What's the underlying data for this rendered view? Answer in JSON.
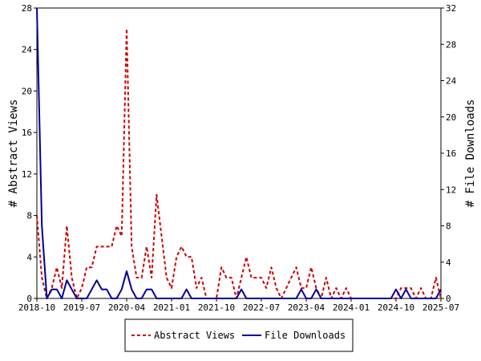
{
  "chart_data": {
    "type": "line",
    "x_ticks": [
      "2018-10",
      "2019-07",
      "2020-04",
      "2021-01",
      "2021-10",
      "2022-07",
      "2023-04",
      "2024-01",
      "2024-10",
      "2025-07"
    ],
    "x_range": [
      "2018-10",
      "2025-07"
    ],
    "ylabel_left": "# Abstract Views",
    "ylabel_right": "# File Downloads",
    "ylim_left": [
      0,
      28
    ],
    "ylim_right": [
      0,
      32
    ],
    "yticks_left": [
      0,
      4,
      8,
      12,
      16,
      20,
      24,
      28
    ],
    "yticks_right": [
      0,
      4,
      8,
      12,
      16,
      20,
      24,
      28,
      32
    ],
    "legend_position": "bottom-center",
    "series": [
      {
        "name": "Abstract Views",
        "axis": "left",
        "color": "#cc0000",
        "style": "dashed",
        "points": [
          [
            "2018-10",
            8
          ],
          [
            "2018-11",
            2
          ],
          [
            "2018-12",
            0
          ],
          [
            "2019-01",
            1
          ],
          [
            "2019-02",
            3
          ],
          [
            "2019-03",
            1
          ],
          [
            "2019-04",
            7
          ],
          [
            "2019-05",
            2
          ],
          [
            "2019-06",
            0
          ],
          [
            "2019-07",
            1
          ],
          [
            "2019-08",
            3
          ],
          [
            "2019-09",
            3
          ],
          [
            "2019-10",
            5
          ],
          [
            "2019-11",
            5
          ],
          [
            "2019-12",
            5
          ],
          [
            "2020-01",
            5
          ],
          [
            "2020-02",
            7
          ],
          [
            "2020-03",
            6
          ],
          [
            "2020-04",
            26
          ],
          [
            "2020-05",
            5
          ],
          [
            "2020-06",
            2
          ],
          [
            "2020-07",
            2
          ],
          [
            "2020-08",
            5
          ],
          [
            "2020-09",
            2
          ],
          [
            "2020-10",
            10
          ],
          [
            "2020-11",
            6
          ],
          [
            "2020-12",
            2
          ],
          [
            "2021-01",
            1
          ],
          [
            "2021-02",
            4
          ],
          [
            "2021-03",
            5
          ],
          [
            "2021-04",
            4
          ],
          [
            "2021-05",
            4
          ],
          [
            "2021-06",
            1
          ],
          [
            "2021-07",
            2
          ],
          [
            "2021-08",
            0
          ],
          [
            "2021-09",
            0
          ],
          [
            "2021-10",
            0
          ],
          [
            "2021-11",
            3
          ],
          [
            "2021-12",
            2
          ],
          [
            "2022-01",
            2
          ],
          [
            "2022-02",
            0
          ],
          [
            "2022-03",
            2
          ],
          [
            "2022-04",
            4
          ],
          [
            "2022-05",
            2
          ],
          [
            "2022-06",
            2
          ],
          [
            "2022-07",
            2
          ],
          [
            "2022-08",
            1
          ],
          [
            "2022-09",
            3
          ],
          [
            "2022-10",
            1
          ],
          [
            "2022-11",
            0
          ],
          [
            "2022-12",
            1
          ],
          [
            "2023-01",
            2
          ],
          [
            "2023-02",
            3
          ],
          [
            "2023-03",
            1
          ],
          [
            "2023-04",
            1
          ],
          [
            "2023-05",
            3
          ],
          [
            "2023-06",
            1
          ],
          [
            "2023-07",
            0
          ],
          [
            "2023-08",
            2
          ],
          [
            "2023-09",
            0
          ],
          [
            "2023-10",
            1
          ],
          [
            "2023-11",
            0
          ],
          [
            "2023-12",
            1
          ],
          [
            "2024-01",
            0
          ],
          [
            "2024-02",
            0
          ],
          [
            "2024-03",
            0
          ],
          [
            "2024-04",
            0
          ],
          [
            "2024-05",
            0
          ],
          [
            "2024-06",
            0
          ],
          [
            "2024-07",
            0
          ],
          [
            "2024-08",
            0
          ],
          [
            "2024-09",
            0
          ],
          [
            "2024-10",
            0
          ],
          [
            "2024-11",
            1
          ],
          [
            "2024-12",
            1
          ],
          [
            "2025-01",
            1
          ],
          [
            "2025-02",
            0
          ],
          [
            "2025-03",
            1
          ],
          [
            "2025-04",
            0
          ],
          [
            "2025-05",
            0
          ],
          [
            "2025-06",
            2
          ],
          [
            "2025-07",
            0
          ]
        ]
      },
      {
        "name": "File Downloads",
        "axis": "right",
        "color": "#000099",
        "style": "solid",
        "points": [
          [
            "2018-10",
            32
          ],
          [
            "2018-11",
            8
          ],
          [
            "2018-12",
            0
          ],
          [
            "2019-01",
            1
          ],
          [
            "2019-02",
            1
          ],
          [
            "2019-03",
            0
          ],
          [
            "2019-04",
            2
          ],
          [
            "2019-05",
            1
          ],
          [
            "2019-06",
            0
          ],
          [
            "2019-07",
            0
          ],
          [
            "2019-08",
            0
          ],
          [
            "2019-09",
            1
          ],
          [
            "2019-10",
            2
          ],
          [
            "2019-11",
            1
          ],
          [
            "2019-12",
            1
          ],
          [
            "2020-01",
            0
          ],
          [
            "2020-02",
            0
          ],
          [
            "2020-03",
            1
          ],
          [
            "2020-04",
            3
          ],
          [
            "2020-05",
            1
          ],
          [
            "2020-06",
            0
          ],
          [
            "2020-07",
            0
          ],
          [
            "2020-08",
            1
          ],
          [
            "2020-09",
            1
          ],
          [
            "2020-10",
            0
          ],
          [
            "2020-11",
            0
          ],
          [
            "2020-12",
            0
          ],
          [
            "2021-01",
            0
          ],
          [
            "2021-02",
            0
          ],
          [
            "2021-03",
            0
          ],
          [
            "2021-04",
            1
          ],
          [
            "2021-05",
            0
          ],
          [
            "2021-06",
            0
          ],
          [
            "2021-07",
            0
          ],
          [
            "2021-08",
            0
          ],
          [
            "2021-09",
            0
          ],
          [
            "2021-10",
            0
          ],
          [
            "2021-11",
            0
          ],
          [
            "2021-12",
            0
          ],
          [
            "2022-01",
            0
          ],
          [
            "2022-02",
            0
          ],
          [
            "2022-03",
            1
          ],
          [
            "2022-04",
            0
          ],
          [
            "2022-05",
            0
          ],
          [
            "2022-06",
            0
          ],
          [
            "2022-07",
            0
          ],
          [
            "2022-08",
            0
          ],
          [
            "2022-09",
            0
          ],
          [
            "2022-10",
            0
          ],
          [
            "2022-11",
            0
          ],
          [
            "2022-12",
            0
          ],
          [
            "2023-01",
            0
          ],
          [
            "2023-02",
            0
          ],
          [
            "2023-03",
            1
          ],
          [
            "2023-04",
            0
          ],
          [
            "2023-05",
            0
          ],
          [
            "2023-06",
            1
          ],
          [
            "2023-07",
            0
          ],
          [
            "2023-08",
            0
          ],
          [
            "2023-09",
            0
          ],
          [
            "2023-10",
            0
          ],
          [
            "2023-11",
            0
          ],
          [
            "2023-12",
            0
          ],
          [
            "2024-01",
            0
          ],
          [
            "2024-02",
            0
          ],
          [
            "2024-03",
            0
          ],
          [
            "2024-04",
            0
          ],
          [
            "2024-05",
            0
          ],
          [
            "2024-06",
            0
          ],
          [
            "2024-07",
            0
          ],
          [
            "2024-08",
            0
          ],
          [
            "2024-09",
            0
          ],
          [
            "2024-10",
            1
          ],
          [
            "2024-11",
            0
          ],
          [
            "2024-12",
            1
          ],
          [
            "2025-01",
            0
          ],
          [
            "2025-02",
            0
          ],
          [
            "2025-03",
            0
          ],
          [
            "2025-04",
            0
          ],
          [
            "2025-05",
            0
          ],
          [
            "2025-06",
            0
          ],
          [
            "2025-07",
            1
          ]
        ]
      }
    ]
  }
}
